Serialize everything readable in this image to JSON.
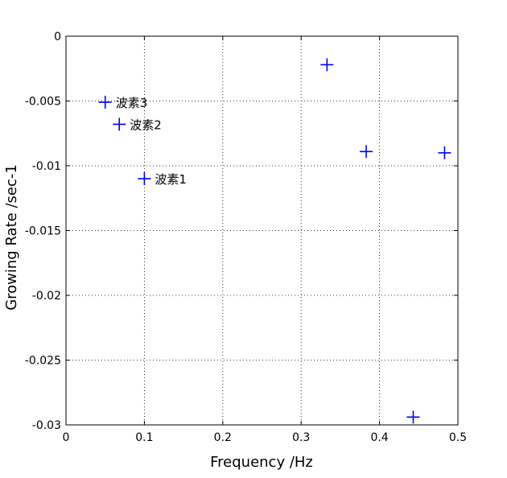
{
  "chart_data": {
    "type": "scatter",
    "title": "",
    "xlabel": "Frequency /Hz",
    "ylabel": "Growing Rate /sec-1",
    "xlim": [
      0,
      0.5
    ],
    "ylim": [
      -0.03,
      0
    ],
    "xticks": [
      0,
      0.1,
      0.2,
      0.3,
      0.4,
      0.5
    ],
    "xtick_labels": [
      "0",
      "0.1",
      "0.2",
      "0.3",
      "0.4",
      "0.5"
    ],
    "yticks": [
      0,
      -0.005,
      -0.01,
      -0.015,
      -0.02,
      -0.025,
      -0.03
    ],
    "ytick_labels": [
      "0",
      "-0.005",
      "-0.01",
      "-0.015",
      "-0.02",
      "-0.025",
      "-0.03"
    ],
    "grid": true,
    "marker": "+",
    "marker_color": "#0000ff",
    "points": [
      {
        "x": 0.05,
        "y": -0.0051,
        "label": "波素3"
      },
      {
        "x": 0.068,
        "y": -0.0068,
        "label": "波素2"
      },
      {
        "x": 0.1,
        "y": -0.011,
        "label": "波素1"
      },
      {
        "x": 0.333,
        "y": -0.0022,
        "label": ""
      },
      {
        "x": 0.383,
        "y": -0.0089,
        "label": ""
      },
      {
        "x": 0.483,
        "y": -0.009,
        "label": ""
      },
      {
        "x": 0.443,
        "y": -0.0294,
        "label": ""
      }
    ]
  }
}
